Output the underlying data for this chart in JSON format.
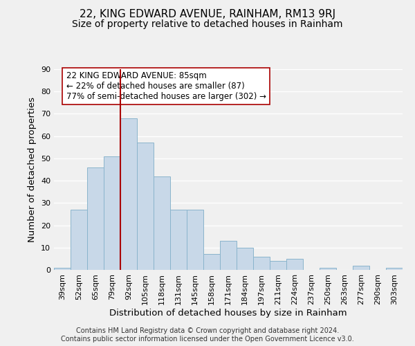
{
  "title": "22, KING EDWARD AVENUE, RAINHAM, RM13 9RJ",
  "subtitle": "Size of property relative to detached houses in Rainham",
  "xlabel": "Distribution of detached houses by size in Rainham",
  "ylabel": "Number of detached properties",
  "footer_line1": "Contains HM Land Registry data © Crown copyright and database right 2024.",
  "footer_line2": "Contains public sector information licensed under the Open Government Licence v3.0.",
  "categories": [
    "39sqm",
    "52sqm",
    "65sqm",
    "79sqm",
    "92sqm",
    "105sqm",
    "118sqm",
    "131sqm",
    "145sqm",
    "158sqm",
    "171sqm",
    "184sqm",
    "197sqm",
    "211sqm",
    "224sqm",
    "237sqm",
    "250sqm",
    "263sqm",
    "277sqm",
    "290sqm",
    "303sqm"
  ],
  "values": [
    1,
    27,
    46,
    51,
    68,
    57,
    42,
    27,
    27,
    7,
    13,
    10,
    6,
    4,
    5,
    0,
    1,
    0,
    2,
    0,
    1
  ],
  "bar_color": "#c8d8e8",
  "bar_edge_color": "#8ab4cc",
  "highlight_line_color": "#aa0000",
  "ylim": [
    0,
    90
  ],
  "yticks": [
    0,
    10,
    20,
    30,
    40,
    50,
    60,
    70,
    80,
    90
  ],
  "annotation_title": "22 KING EDWARD AVENUE: 85sqm",
  "annotation_line2": "← 22% of detached houses are smaller (87)",
  "annotation_line3": "77% of semi-detached houses are larger (302) →",
  "bg_color": "#f0f0f0",
  "grid_color": "#ffffff",
  "title_fontsize": 11,
  "subtitle_fontsize": 10,
  "axis_label_fontsize": 9.5,
  "tick_fontsize": 8,
  "annotation_fontsize": 8.5,
  "footer_fontsize": 7
}
